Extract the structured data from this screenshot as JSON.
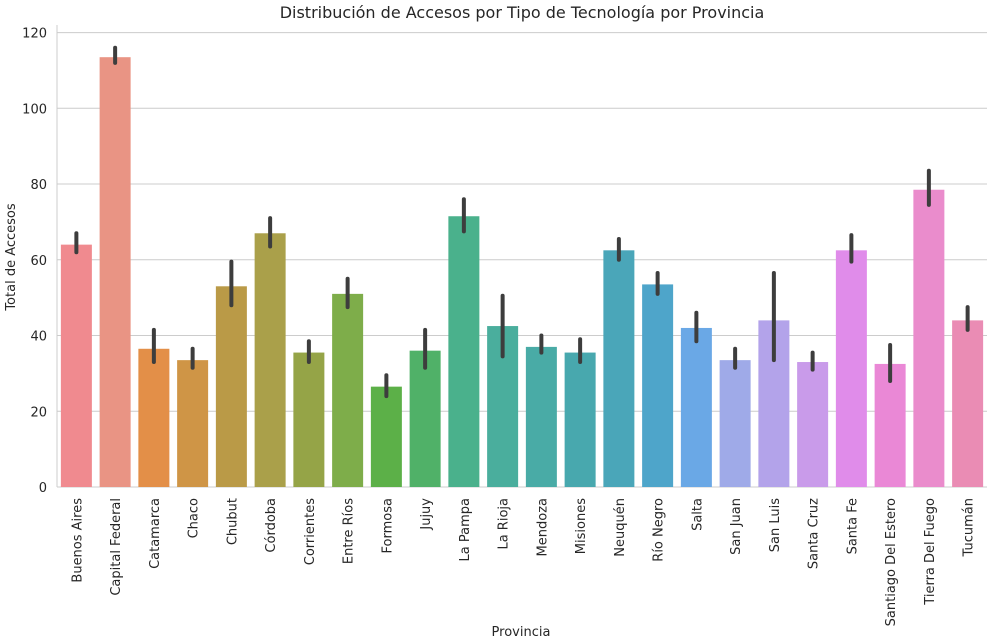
{
  "chart_data": {
    "type": "bar",
    "title": "Distribución de Accesos por Tipo de Tecnología por Provincia",
    "xlabel": "Provincia",
    "ylabel": "Total de Accesos",
    "ylim": [
      0,
      122
    ],
    "yticks": [
      0,
      20,
      40,
      60,
      80,
      100,
      120
    ],
    "grid": "horizontal",
    "categories": [
      "Buenos Aires",
      "Capital Federal",
      "Catamarca",
      "Chaco",
      "Chubut",
      "Córdoba",
      "Corrientes",
      "Entre Ríos",
      "Formosa",
      "Jujuy",
      "La Pampa",
      "La Rioja",
      "Mendoza",
      "Misiones",
      "Neuquén",
      "Río Negro",
      "Salta",
      "San Juan",
      "San Luis",
      "Santa Cruz",
      "Santa Fe",
      "Santiago Del Estero",
      "Tierra Del Fuego",
      "Tucumán"
    ],
    "values": [
      64,
      113.5,
      36.5,
      33.5,
      53,
      67,
      35.5,
      51,
      26.5,
      36,
      71.5,
      42.5,
      37,
      35.5,
      62.5,
      53.5,
      42,
      33.5,
      44,
      33,
      62.5,
      32.5,
      78.5,
      44
    ],
    "error_bars": [
      [
        62,
        67
      ],
      [
        112,
        116
      ],
      [
        33,
        41.5
      ],
      [
        31.5,
        36.5
      ],
      [
        48,
        59.5
      ],
      [
        63.5,
        71
      ],
      [
        33,
        38.5
      ],
      [
        47.5,
        55
      ],
      [
        24,
        29.5
      ],
      [
        31.5,
        41.5
      ],
      [
        67.5,
        76
      ],
      [
        34.5,
        50.5
      ],
      [
        35.5,
        40
      ],
      [
        33,
        39
      ],
      [
        60,
        65.5
      ],
      [
        51,
        56.5
      ],
      [
        38.5,
        46
      ],
      [
        31.5,
        36.5
      ],
      [
        33.5,
        56.5
      ],
      [
        31,
        35.5
      ],
      [
        59.5,
        66.5
      ],
      [
        28,
        37.5
      ],
      [
        74.5,
        83.5
      ],
      [
        41.5,
        47.5
      ]
    ],
    "colors": [
      "#f08a8f",
      "#e99484",
      "#e38f48",
      "#cf9546",
      "#ba9a47",
      "#aaa04a",
      "#95a447",
      "#7ead4a",
      "#5cb048",
      "#50b168",
      "#4ab18c",
      "#4aae9d",
      "#49aba6",
      "#48a8ae",
      "#4aa6b9",
      "#4ea5ca",
      "#6aa8e6",
      "#9faae8",
      "#b3a3ea",
      "#c99bea",
      "#e08cea",
      "#ea88d6",
      "#ea8ccc",
      "#ea8cb4"
    ],
    "error_color": "#3d3d3d",
    "grid_color": "#cccccc",
    "legend": "none"
  }
}
